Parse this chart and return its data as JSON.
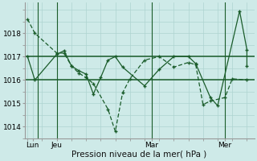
{
  "bg_color": "#ceeae8",
  "grid_color": "#aed4d0",
  "line_color": "#1a5c2a",
  "series1_x": [
    0,
    0.5,
    2.0,
    2.5,
    3.0,
    3.5,
    4.0,
    4.5,
    5.5,
    6.0,
    6.5,
    7.0,
    8.0,
    9.0,
    10.0,
    11.0,
    11.5,
    12.0,
    12.5,
    13.5,
    14.0,
    15.0
  ],
  "series1_y": [
    1018.6,
    1018.0,
    1017.15,
    1017.15,
    1016.6,
    1016.3,
    1016.1,
    1015.85,
    1014.75,
    1013.8,
    1015.45,
    1016.05,
    1016.85,
    1017.0,
    1016.55,
    1016.75,
    1016.65,
    1014.95,
    1015.1,
    1015.25,
    1016.05,
    1016.0
  ],
  "series2_x": [
    0,
    0.5,
    2.0,
    2.5,
    3.0,
    3.5,
    4.0,
    4.5,
    5.0,
    5.5,
    6.0,
    6.5,
    8.0,
    9.0,
    10.0,
    11.0,
    11.5,
    12.5,
    13.0,
    14.5,
    15.0,
    15.0
  ],
  "series2_y": [
    1017.0,
    1016.0,
    1017.1,
    1017.25,
    1016.6,
    1016.4,
    1016.25,
    1015.4,
    1016.1,
    1016.85,
    1017.0,
    1016.55,
    1015.75,
    1016.45,
    1017.0,
    1017.0,
    1016.7,
    1015.25,
    1014.9,
    1018.95,
    1017.3,
    1016.6
  ],
  "hline1_y": 1017.0,
  "hline2_y": 1016.0,
  "vlines_x": [
    0.7,
    2.0,
    8.5,
    13.5
  ],
  "xlim": [
    -0.2,
    15.5
  ],
  "ylim": [
    1013.5,
    1019.3
  ],
  "xlabel": "Pression niveau de la mer( hPa )",
  "xtick_positions": [
    0.35,
    2.0,
    8.5,
    13.5
  ],
  "xtick_labels": [
    "Lun",
    "Jeu",
    "Mar",
    "Mer"
  ],
  "ytick_positions": [
    1014,
    1015,
    1016,
    1017,
    1018
  ],
  "ytick_labels": [
    "1014",
    "1015",
    "1016",
    "1017",
    "1018"
  ],
  "label_fontsize": 7.5,
  "tick_fontsize": 6.5
}
